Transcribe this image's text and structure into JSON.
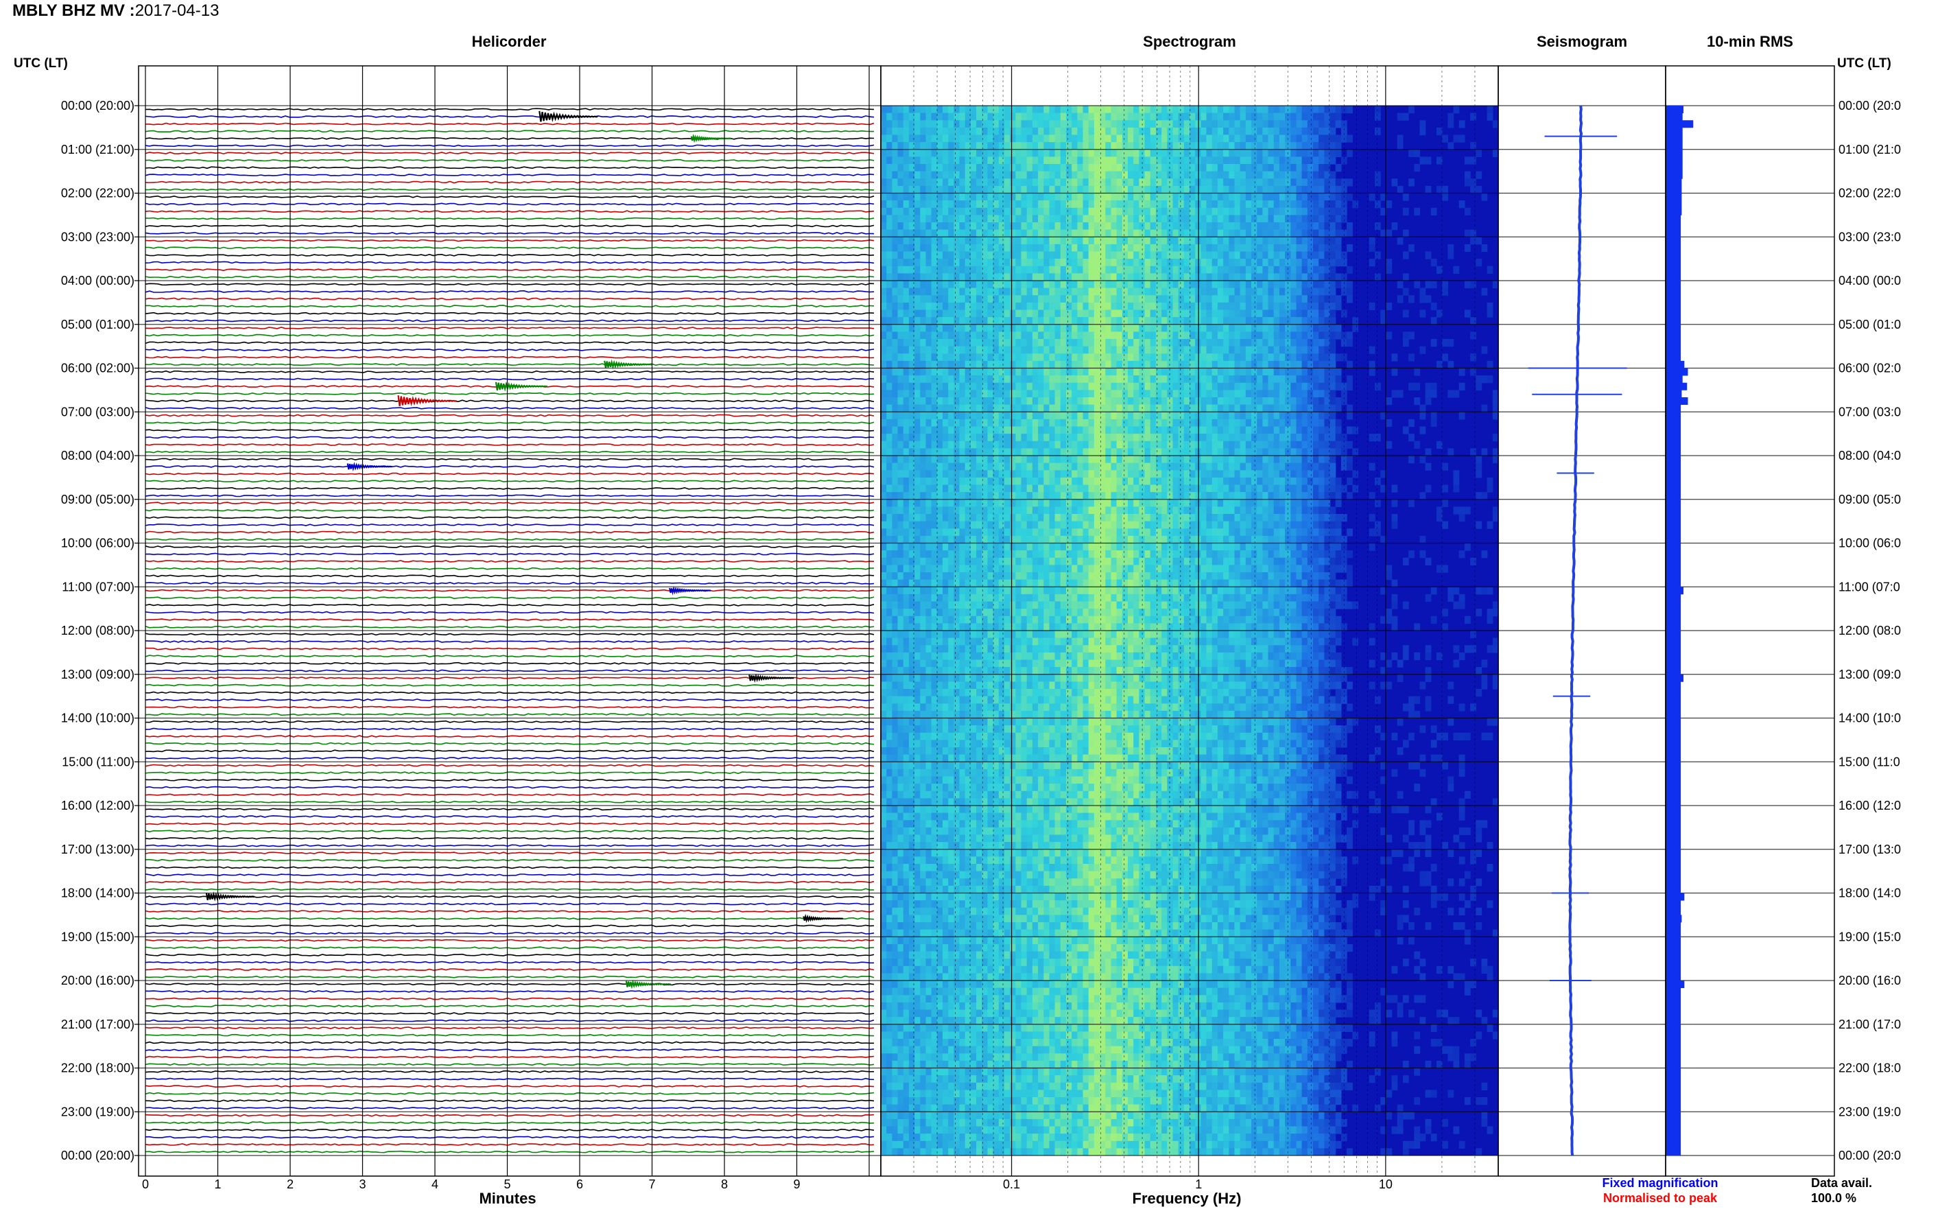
{
  "header": {
    "station": "MBLY BHZ MV :",
    "date": "2017-04-13"
  },
  "panels": {
    "helicorder": "Helicorder",
    "spectrogram": "Spectrogram",
    "seismogram": "Seismogram",
    "rms": "10-min RMS"
  },
  "utc_header": "UTC (LT)",
  "row_labels": [
    "00:00 (20:00)",
    "01:00 (21:00)",
    "02:00 (22:00)",
    "03:00 (23:00)",
    "04:00 (00:00)",
    "05:00 (01:00)",
    "06:00 (02:00)",
    "07:00 (03:00)",
    "08:00 (04:00)",
    "09:00 (05:00)",
    "10:00 (06:00)",
    "11:00 (07:00)",
    "12:00 (08:00)",
    "13:00 (09:00)",
    "14:00 (10:00)",
    "15:00 (11:00)",
    "16:00 (12:00)",
    "17:00 (13:00)",
    "18:00 (14:00)",
    "19:00 (15:00)",
    "20:00 (16:00)",
    "21:00 (17:00)",
    "22:00 (18:00)",
    "23:00 (19:00)",
    "00:00 (20:00)"
  ],
  "right_row_labels": [
    "00:00 (20:0",
    "01:00 (21:0",
    "02:00 (22:0",
    "03:00 (23:0",
    "04:00 (00:0",
    "05:00 (01:0",
    "06:00 (02:0",
    "07:00 (03:0",
    "08:00 (04:0",
    "09:00 (05:0",
    "10:00 (06:0",
    "11:00 (07:0",
    "12:00 (08:0",
    "13:00 (09:0",
    "14:00 (10:0",
    "15:00 (11:0",
    "16:00 (12:0",
    "17:00 (13:0",
    "18:00 (14:0",
    "19:00 (15:0",
    "20:00 (16:0",
    "21:00 (17:0",
    "22:00 (18:0",
    "23:00 (19:0",
    "00:00 (20:0"
  ],
  "minute_ticks": [
    "0",
    "1",
    "2",
    "3",
    "4",
    "5",
    "6",
    "7",
    "8",
    "9"
  ],
  "freq_ticks": [
    "0.1",
    "1",
    "10"
  ],
  "x_label_helicorder": "Minutes",
  "x_label_spectrogram": "Frequency (Hz)",
  "legend": {
    "fixed": "Fixed magnification",
    "normalised": "Normalised to peak"
  },
  "data_avail": {
    "label": "Data avail.",
    "value": "100.0 %"
  },
  "colors": {
    "trace_cycle": [
      "#000000",
      "#0000cc",
      "#cc0000",
      "#008800"
    ],
    "fixed": "#0000ff",
    "normalised": "#ff0000",
    "rms_bar": "#1030f0",
    "seismogram_line": "#2040e0",
    "spec_low": "#0a14b4",
    "spec_mid": "#1e78e6",
    "spec_high": "#30d2dc",
    "spec_peak": "#a0f080"
  },
  "chart_data": [
    {
      "type": "line",
      "title": "Helicorder",
      "xlabel": "Minutes",
      "xlim": [
        0,
        10
      ],
      "traces_per_hour": 6,
      "hours": 24,
      "events": [
        {
          "trace": 1,
          "minute": 5.5,
          "amp": 0.9,
          "color": "#000000"
        },
        {
          "trace": 4,
          "minute": 7.6,
          "amp": 0.35,
          "color": "#008800"
        },
        {
          "trace": 35,
          "minute": 6.4,
          "amp": 0.6,
          "color": "#008800"
        },
        {
          "trace": 38,
          "minute": 4.9,
          "amp": 0.7,
          "color": "#008800"
        },
        {
          "trace": 40,
          "minute": 3.55,
          "amp": 0.9,
          "color": "#cc0000"
        },
        {
          "trace": 49,
          "minute": 2.85,
          "amp": 0.5,
          "color": "#0000cc"
        },
        {
          "trace": 66,
          "minute": 7.3,
          "amp": 0.4,
          "color": "#0000cc"
        },
        {
          "trace": 78,
          "minute": 8.4,
          "amp": 0.5,
          "color": "#000000"
        },
        {
          "trace": 108,
          "minute": 0.9,
          "amp": 0.6,
          "color": "#000000"
        },
        {
          "trace": 111,
          "minute": 9.15,
          "amp": 0.35,
          "color": "#000000"
        },
        {
          "trace": 120,
          "minute": 6.7,
          "amp": 0.5,
          "color": "#008800"
        }
      ]
    },
    {
      "type": "heatmap",
      "title": "Spectrogram",
      "xlabel": "Frequency (Hz)",
      "x_scale": "log",
      "xlim": [
        0.02,
        40
      ],
      "peak_frequency_hz": 0.28,
      "rolloff_hz": [
        3,
        8
      ]
    },
    {
      "type": "line",
      "title": "Seismogram",
      "hours": 24,
      "spikes": [
        {
          "hour": 0.7,
          "size": 0.7
        },
        {
          "hour": 6.0,
          "size": 1.0
        },
        {
          "hour": 6.6,
          "size": 0.9
        },
        {
          "hour": 8.4,
          "size": 0.3
        },
        {
          "hour": 13.5,
          "size": 0.3
        },
        {
          "hour": 18.0,
          "size": 0.3
        },
        {
          "hour": 20.0,
          "size": 0.35
        }
      ]
    },
    {
      "type": "bar",
      "title": "10-min RMS",
      "orientation": "horizontal",
      "values": [
        1.0,
        0.95,
        1.55,
        0.95,
        0.95,
        0.95,
        0.95,
        0.95,
        0.95,
        0.95,
        0.9,
        0.9,
        0.9,
        0.9,
        0.9,
        0.85,
        0.85,
        0.85,
        0.85,
        0.85,
        0.85,
        0.85,
        0.85,
        0.85,
        0.85,
        0.85,
        0.85,
        0.85,
        0.85,
        0.85,
        0.85,
        0.85,
        0.85,
        0.85,
        0.85,
        1.05,
        1.25,
        0.95,
        1.2,
        0.9,
        1.25,
        0.85,
        0.85,
        0.85,
        0.85,
        0.85,
        0.85,
        0.85,
        0.85,
        0.85,
        0.85,
        0.85,
        0.85,
        0.85,
        0.85,
        0.85,
        0.85,
        0.85,
        0.85,
        0.85,
        0.85,
        0.85,
        0.85,
        0.85,
        0.85,
        0.85,
        1.0,
        0.85,
        0.85,
        0.85,
        0.85,
        0.85,
        0.85,
        0.85,
        0.85,
        0.85,
        0.85,
        0.85,
        1.0,
        0.85,
        0.85,
        0.85,
        0.85,
        0.85,
        0.85,
        0.85,
        0.85,
        0.85,
        0.85,
        0.85,
        0.85,
        0.85,
        0.85,
        0.85,
        0.85,
        0.85,
        0.85,
        0.85,
        0.85,
        0.85,
        0.85,
        0.85,
        0.85,
        0.85,
        0.85,
        0.85,
        0.85,
        0.85,
        1.05,
        0.85,
        0.85,
        0.9,
        0.85,
        0.85,
        0.85,
        0.85,
        0.85,
        0.85,
        0.85,
        0.85,
        1.05,
        0.85,
        0.85,
        0.85,
        0.85,
        0.85,
        0.85,
        0.85,
        0.85,
        0.85,
        0.85,
        0.85,
        0.85,
        0.85,
        0.85,
        0.85,
        0.85,
        0.85,
        0.85,
        0.85,
        0.85,
        0.85,
        0.85,
        0.85
      ]
    }
  ]
}
